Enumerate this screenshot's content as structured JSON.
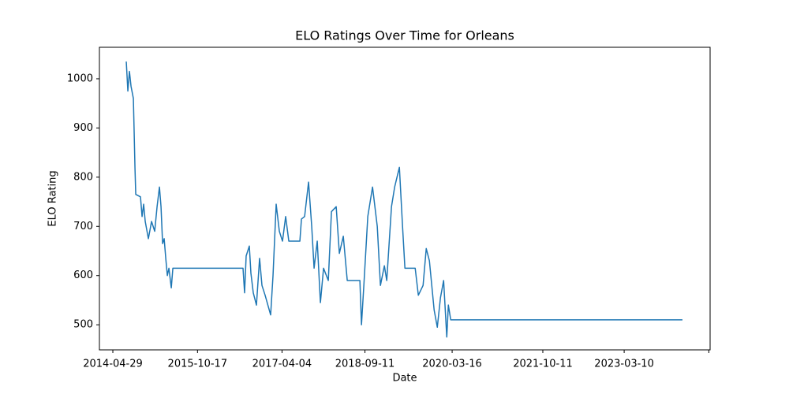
{
  "chart_data": {
    "type": "line",
    "title": "ELO Ratings Over Time for Orleans",
    "x_label": "Date",
    "y_label": "ELO Rating",
    "xlim": [
      "2014-02-03",
      "2024-09-04"
    ],
    "ylim": [
      449,
      1064
    ],
    "xticks": [
      "2014-04-29",
      "2015-10-17",
      "2017-04-04",
      "2018-09-11",
      "2020-03-16",
      "2021-10-11",
      "2023-03-10",
      {
        "value": "2024-08-27",
        "label": null
      }
    ],
    "yticks": [
      500,
      600,
      700,
      800,
      900,
      1000
    ],
    "grid": false,
    "x": [
      "2014-07-23",
      "2014-08-02",
      "2014-08-12",
      "2014-08-22",
      "2014-09-06",
      "2014-09-11",
      "2014-09-16",
      "2014-09-21",
      "2014-10-21",
      "2014-10-31",
      "2014-11-10",
      "2014-11-20",
      "2014-12-10",
      "2014-12-30",
      "2015-01-19",
      "2015-02-03",
      "2015-02-18",
      "2015-02-28",
      "2015-03-10",
      "2015-03-20",
      "2015-03-30",
      "2015-04-09",
      "2015-04-19",
      "2015-05-04",
      "2015-05-14",
      "2016-07-31",
      "2016-08-10",
      "2016-08-20",
      "2016-09-09",
      "2016-09-19",
      "2016-10-04",
      "2016-10-24",
      "2016-11-13",
      "2016-11-28",
      "2016-12-18",
      "2017-01-22",
      "2017-02-06",
      "2017-02-26",
      "2017-03-18",
      "2017-04-07",
      "2017-04-27",
      "2017-05-17",
      "2017-07-26",
      "2017-08-05",
      "2017-08-25",
      "2017-09-19",
      "2017-10-09",
      "2017-10-24",
      "2017-11-13",
      "2017-12-03",
      "2017-12-23",
      "2018-01-22",
      "2018-02-11",
      "2018-03-13",
      "2018-04-02",
      "2018-04-27",
      "2018-05-22",
      "2018-08-10",
      "2018-08-20",
      "2018-09-04",
      "2018-09-29",
      "2018-10-29",
      "2018-11-28",
      "2018-12-18",
      "2019-01-12",
      "2019-01-27",
      "2019-02-26",
      "2019-03-18",
      "2019-04-17",
      "2019-05-07",
      "2019-05-22",
      "2019-07-26",
      "2019-08-15",
      "2019-09-14",
      "2019-10-04",
      "2019-10-24",
      "2019-11-23",
      "2019-12-13",
      "2020-01-02",
      "2020-01-22",
      "2020-02-11",
      "2020-02-21",
      "2020-03-07",
      "2024-03-13"
    ],
    "series": [
      {
        "name": "Orleans",
        "color": "#1f77b4",
        "values": [
          1035,
          975,
          1015,
          985,
          960,
          890,
          820,
          765,
          760,
          720,
          745,
          710,
          675,
          710,
          690,
          740,
          780,
          740,
          665,
          675,
          635,
          600,
          615,
          575,
          615,
          615,
          565,
          640,
          660,
          605,
          565,
          540,
          635,
          580,
          560,
          520,
          600,
          745,
          690,
          670,
          720,
          670,
          670,
          715,
          720,
          790,
          700,
          615,
          670,
          545,
          615,
          590,
          730,
          740,
          645,
          680,
          590,
          590,
          500,
          580,
          720,
          780,
          700,
          580,
          620,
          590,
          740,
          780,
          820,
          700,
          615,
          615,
          560,
          580,
          655,
          630,
          530,
          495,
          555,
          590,
          475,
          540,
          510,
          510
        ]
      }
    ]
  }
}
